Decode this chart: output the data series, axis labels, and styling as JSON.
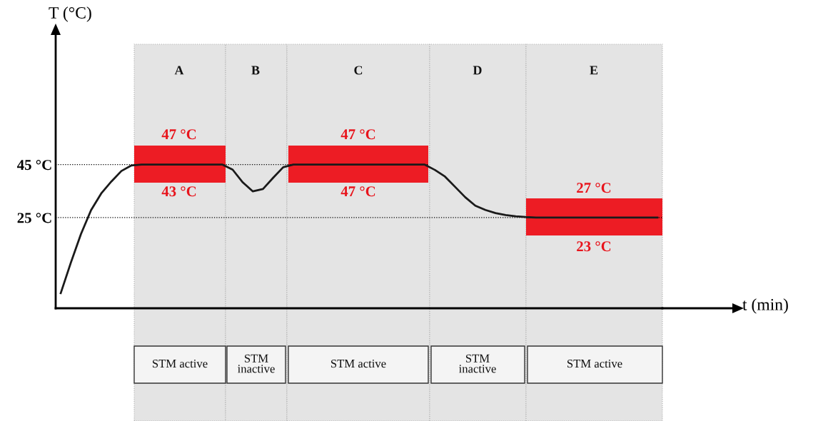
{
  "chart_data": {
    "type": "line",
    "xlabel": "t (min)",
    "ylabel": "T (°C)",
    "categories": [
      null,
      null,
      null,
      null,
      null,
      null,
      null,
      null,
      null,
      null,
      null,
      null,
      null,
      null,
      null,
      null,
      null,
      null,
      null,
      null,
      null,
      null,
      null,
      null,
      null,
      null,
      null,
      null,
      null,
      null,
      null,
      null,
      null,
      null,
      null,
      null,
      null,
      null,
      null,
      null,
      null,
      null,
      null,
      null,
      null,
      null,
      null,
      null,
      null,
      null,
      null,
      null,
      null,
      null,
      null,
      null,
      null,
      null,
      null,
      null
    ],
    "series": [
      {
        "color": "#1a1a1a",
        "values": [
          -3.5,
          8,
          18.8,
          27.8,
          34.1,
          38.6,
          42.6,
          44.7,
          45,
          45,
          45,
          45,
          45,
          45,
          45,
          45,
          45,
          43.1,
          38.3,
          34.9,
          35.8,
          40,
          44,
          45,
          45,
          45,
          45,
          45,
          45,
          45,
          45,
          45,
          45,
          45,
          45,
          45,
          45,
          43,
          40.5,
          36.6,
          32.7,
          29.5,
          27.9,
          26.7,
          26,
          25.5,
          25.2,
          25,
          25,
          25,
          25,
          25,
          25,
          25,
          25,
          25,
          25,
          25,
          25,
          25
        ]
      }
    ],
    "ylim": [
      -9.2,
      95
    ],
    "yticks": [
      {
        "value": 45,
        "label": "45 °C"
      },
      {
        "value": 25,
        "label": "25 °C"
      }
    ],
    "ref_lines": [
      {
        "axis": "y",
        "value": 45,
        "line_style": "dotted",
        "color": "#000000"
      },
      {
        "axis": "y",
        "value": 25,
        "line_style": "dotted",
        "color": "#000000"
      }
    ],
    "tick_labels": "y",
    "grid": false,
    "marker": "none",
    "line_style": "solid",
    "annotations": [
      "A",
      "B",
      "C",
      "D",
      "E",
      "47 °C",
      "43 °C",
      "47 °C",
      "47 °C",
      "27 °C",
      "23 °C",
      "STM active",
      "STM\ninactive",
      "STM active",
      "STM\ninactive",
      "STM active"
    ]
  }
}
